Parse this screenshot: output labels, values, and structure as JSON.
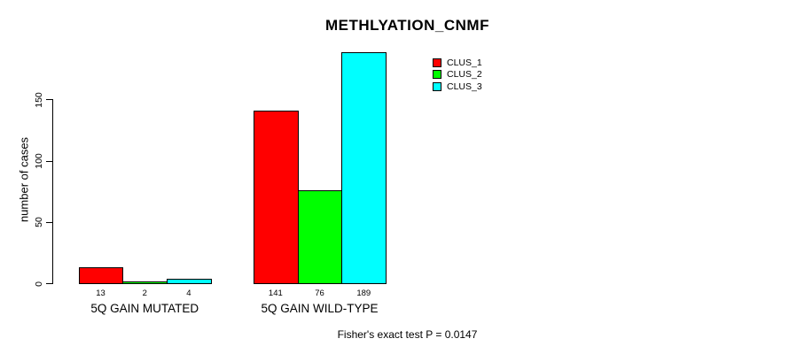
{
  "title": "METHLYATION_CNMF",
  "footer": "Fisher's exact test P = 0.0147",
  "y_axis": {
    "label": "number of cases",
    "tick_labels": [
      "0",
      "50",
      "100",
      "150"
    ]
  },
  "legend": {
    "items": [
      {
        "label": "CLUS_1",
        "color": "#FF0000"
      },
      {
        "label": "CLUS_2",
        "color": "#00FF00"
      },
      {
        "label": "CLUS_3",
        "color": "#00FFFF"
      }
    ]
  },
  "chart_data": {
    "type": "bar",
    "title": "METHLYATION_CNMF",
    "categories": [
      "5Q GAIN MUTATED",
      "5Q GAIN WILD-TYPE"
    ],
    "series": [
      {
        "name": "CLUS_1",
        "color": "#FF0000",
        "values": [
          13,
          141
        ]
      },
      {
        "name": "CLUS_2",
        "color": "#00FF00",
        "values": [
          2,
          76
        ]
      },
      {
        "name": "CLUS_3",
        "color": "#00FFFF",
        "values": [
          4,
          189
        ]
      }
    ],
    "bar_value_labels": [
      [
        13,
        2,
        4
      ],
      [
        141,
        76,
        189
      ]
    ],
    "xlabel": "",
    "ylabel": "number of cases",
    "yticks": [
      0,
      50,
      100,
      150
    ],
    "ylim": [
      0,
      190
    ],
    "grid": false,
    "legend_position": "top-right",
    "annotation": "Fisher's exact test P = 0.0147"
  }
}
